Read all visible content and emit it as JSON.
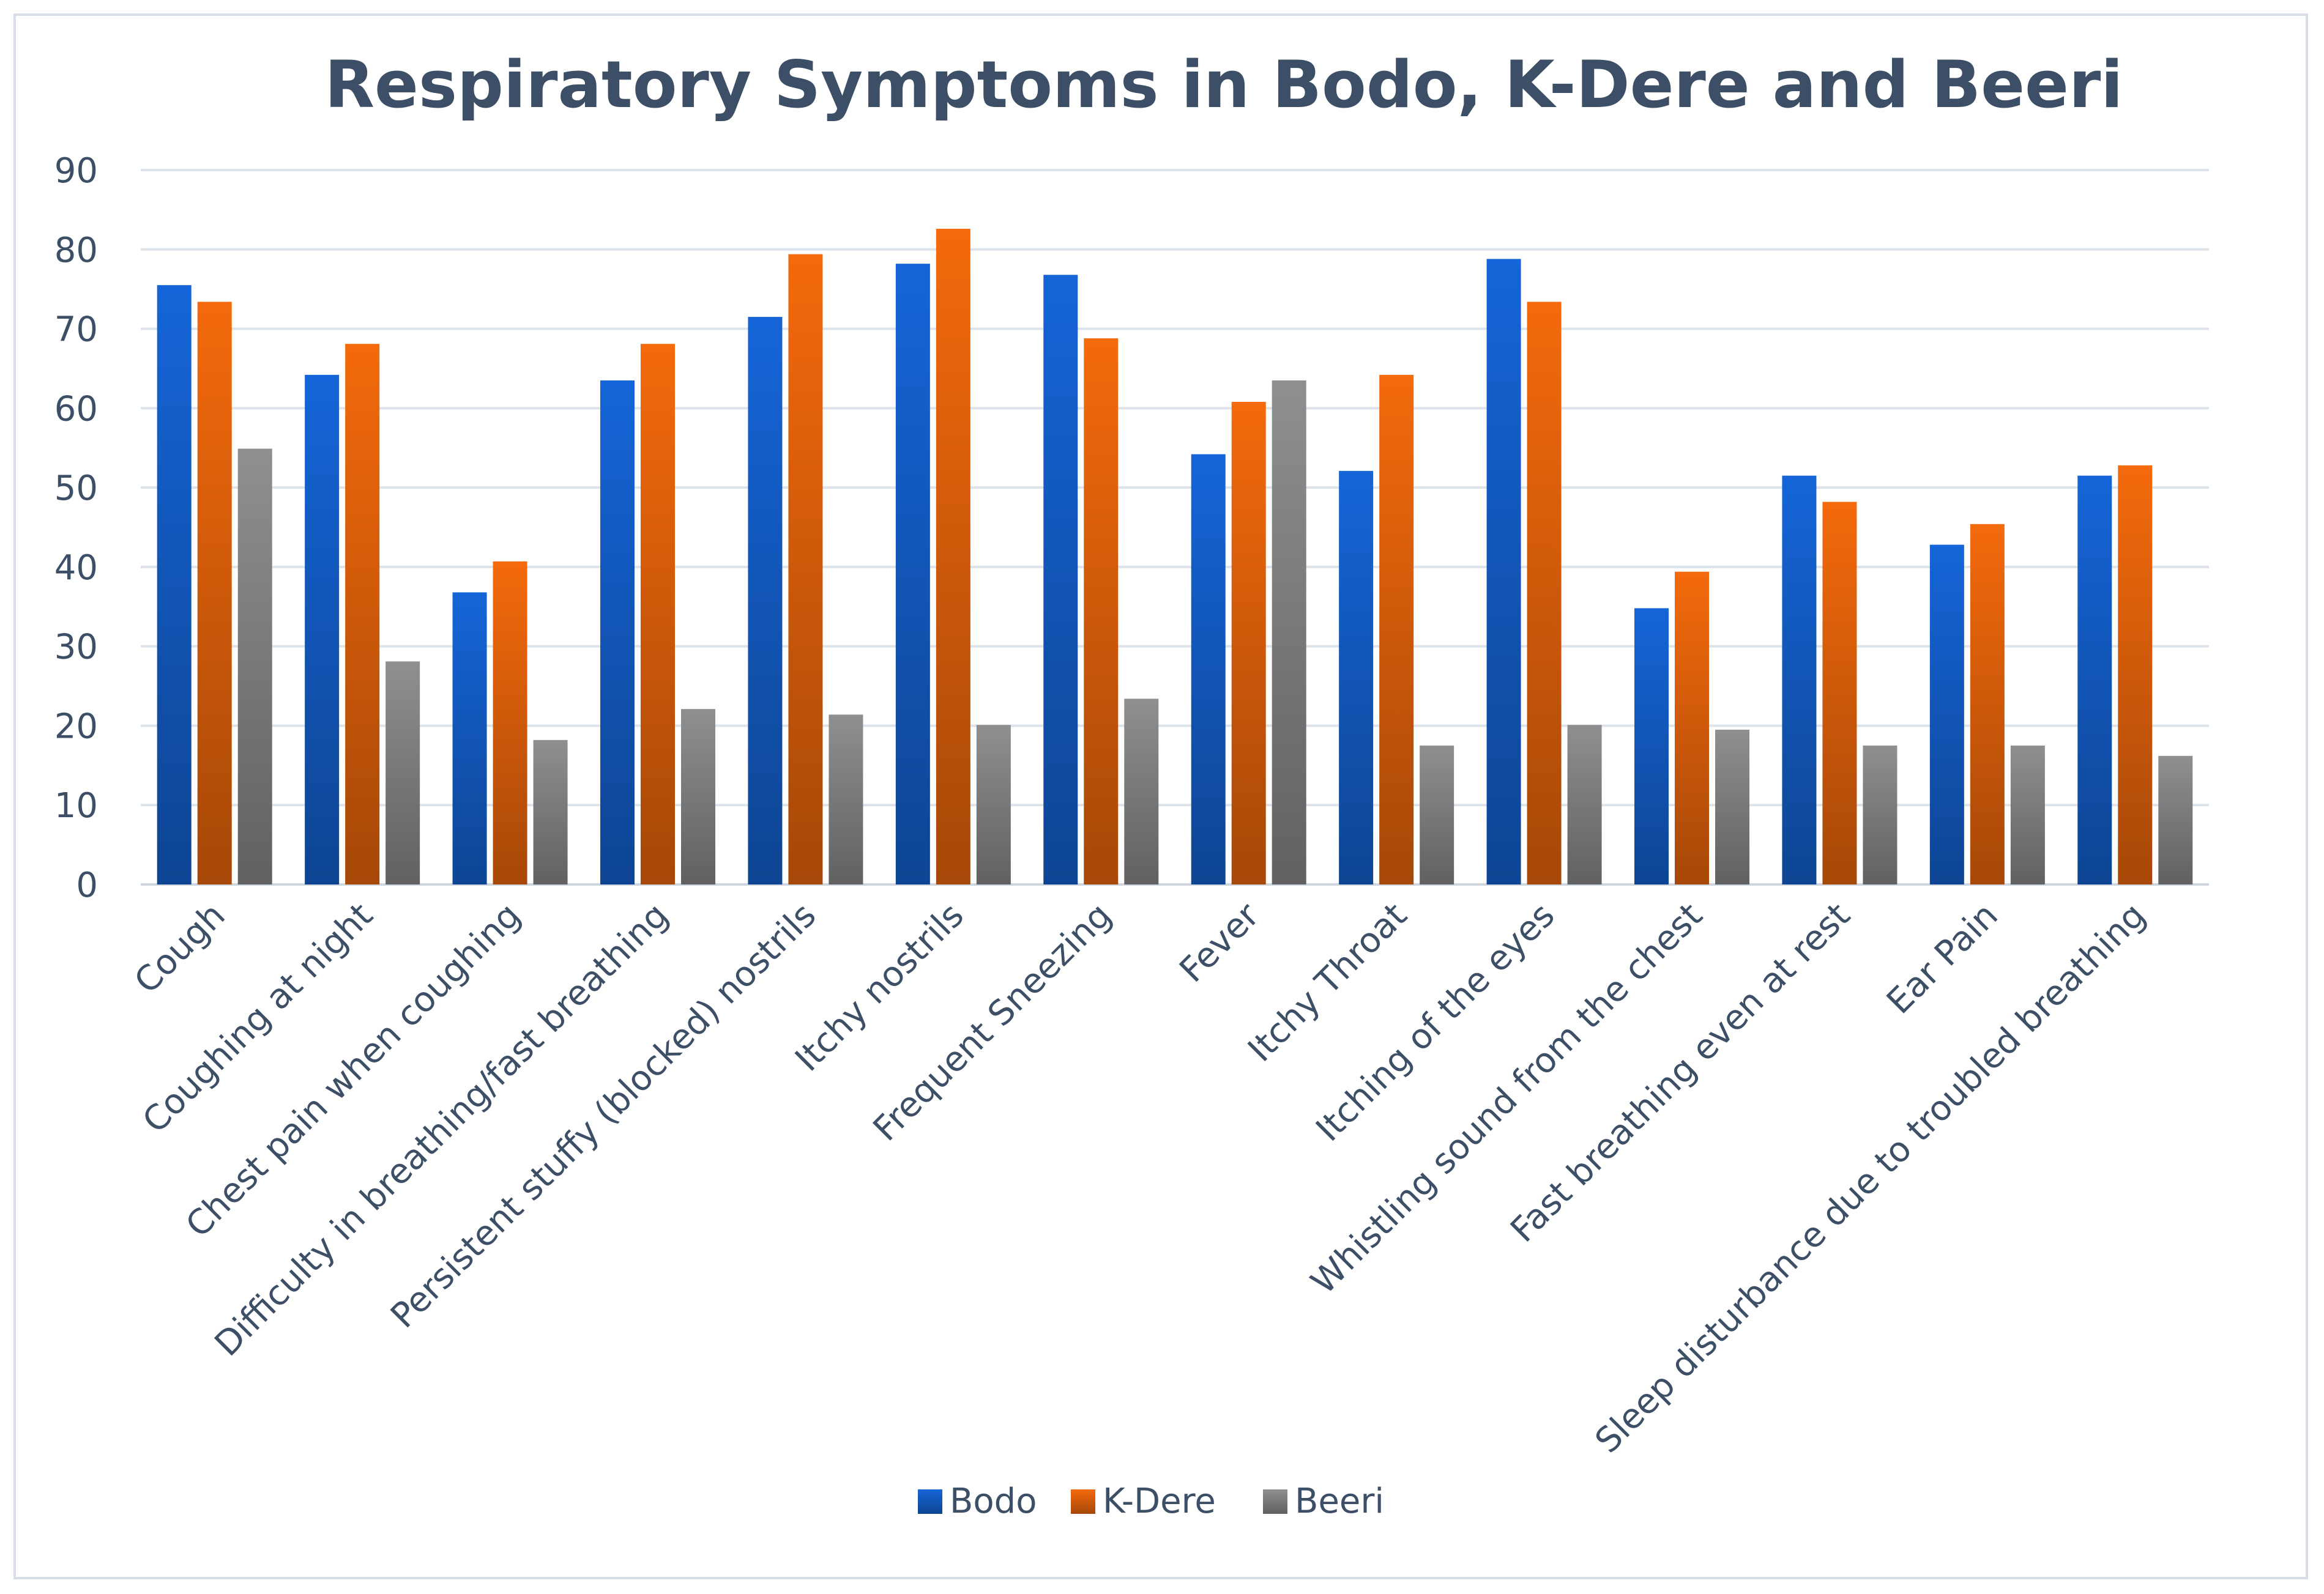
{
  "chart_data": {
    "type": "bar",
    "title": "Respiratory Symptoms in Bodo, K-Dere and Beeri",
    "xlabel": "",
    "ylabel": "",
    "ylim": [
      0,
      90
    ],
    "yticks": [
      0,
      10,
      20,
      30,
      40,
      50,
      60,
      70,
      80,
      90
    ],
    "grid": true,
    "legend_position": "bottom",
    "categories": [
      "Cough",
      "Coughing at night",
      "Chest pain when coughing",
      "Difficulty in breathing/fast breathing",
      "Persistent stuffy (blocked) nostrils",
      "Itchy nostrils",
      "Frequent Sneezing",
      "Fever",
      "Itchy Throat",
      "Itching of the eyes",
      "Whistling sound from the chest",
      "Fast breathing even at rest",
      "Ear Pain",
      "Sleep disturbance due to troubled breathing"
    ],
    "series": [
      {
        "name": "Bodo",
        "color": "#1565d8",
        "values": [
          75.5,
          64.2,
          36.8,
          63.5,
          71.5,
          78.2,
          76.8,
          54.2,
          52.1,
          78.8,
          34.8,
          51.5,
          42.8,
          51.5
        ]
      },
      {
        "name": "K-Dere",
        "color": "#f46a0c",
        "values": [
          73.4,
          68.1,
          40.7,
          68.1,
          79.4,
          82.6,
          68.8,
          60.8,
          64.2,
          73.4,
          39.4,
          48.2,
          45.4,
          52.8
        ]
      },
      {
        "name": "Beeri",
        "color": "#8f8f8f",
        "values": [
          54.9,
          28.1,
          18.2,
          22.1,
          21.4,
          20.1,
          23.4,
          63.5,
          17.5,
          20.1,
          19.5,
          17.5,
          17.5,
          16.2
        ]
      }
    ]
  }
}
